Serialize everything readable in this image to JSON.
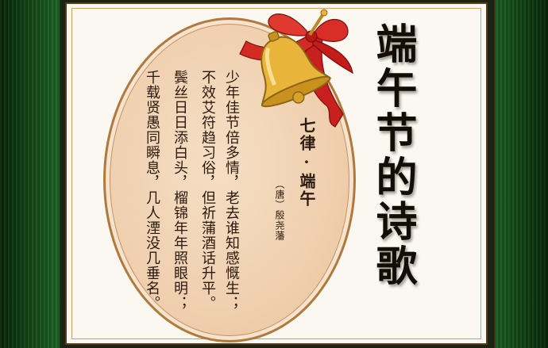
{
  "header": {
    "title": "端午节的诗歌"
  },
  "poem": {
    "title": "七律·端午",
    "author": "（唐）殷尧藩",
    "lines": [
      "少年佳节倍多情，老去谁知感慨生；",
      "不效艾符趋习俗，但祈蒲酒话升平。",
      "鬓丝日日添白头，榴锦年年照眼明；",
      "千载贤愚同瞬息，几人湮没几垂名。"
    ]
  },
  "decor": {
    "icons": [
      "bell-icon",
      "ribbon-icon"
    ],
    "colors": {
      "frame_green": "#1f6a26",
      "mat": "#fbf8f1",
      "oval_fill": "#efcfae",
      "oval_border": "#b07a3e",
      "ribbon": "#c8201e",
      "bell": "#e8b53a",
      "text": "#2a1a10"
    }
  }
}
